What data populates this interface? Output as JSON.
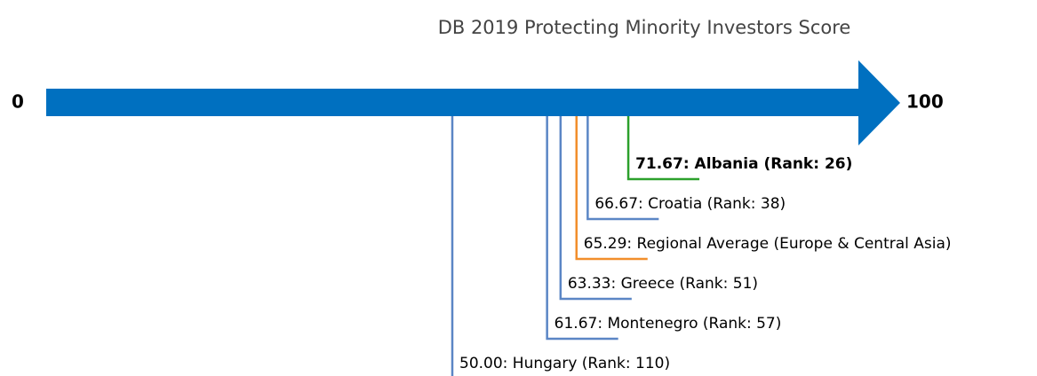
{
  "chart_data": {
    "type": "marker",
    "title": "DB 2019 Protecting Minority Investors Score",
    "xlim": [
      0,
      100
    ],
    "xticks": [
      0,
      100
    ],
    "axis_color": "#0070c0",
    "values": [
      71.67,
      66.67,
      65.29,
      63.33,
      61.67,
      50.0
    ],
    "value_labels": [
      "71.67: Albania (Rank: 26)",
      "66.67: Croatia (Rank: 38)",
      "65.29: Regional Average (Europe & Central Asia)",
      "63.33: Greece (Rank: 51)",
      "61.67: Montenegro (Rank: 57)",
      "50.00: Hungary (Rank: 110)"
    ],
    "colors": [
      "#2ca02c",
      "#5b86c5",
      "#f28e2b",
      "#5b86c5",
      "#5b86c5",
      "#5b86c5"
    ],
    "bold": [
      true,
      false,
      false,
      false,
      false,
      false
    ]
  }
}
